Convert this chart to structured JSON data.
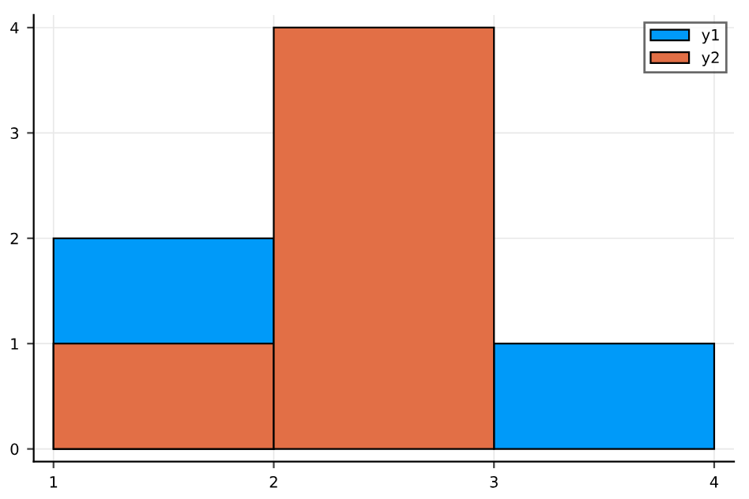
{
  "chart_data": {
    "type": "histogram",
    "bins": [
      1,
      2,
      3,
      4
    ],
    "series": [
      {
        "name": "y1",
        "color": "#009af9",
        "values": [
          2,
          null,
          1
        ]
      },
      {
        "name": "y2",
        "color": "#e26f46",
        "values": [
          1,
          4,
          null
        ]
      }
    ],
    "xlim": [
      0.91,
      4.09
    ],
    "ylim": [
      -0.12,
      4.12
    ],
    "xticks": [
      1,
      2,
      3,
      4
    ],
    "yticks": [
      0,
      1,
      2,
      3,
      4
    ],
    "grid": true,
    "legend": "top right"
  }
}
